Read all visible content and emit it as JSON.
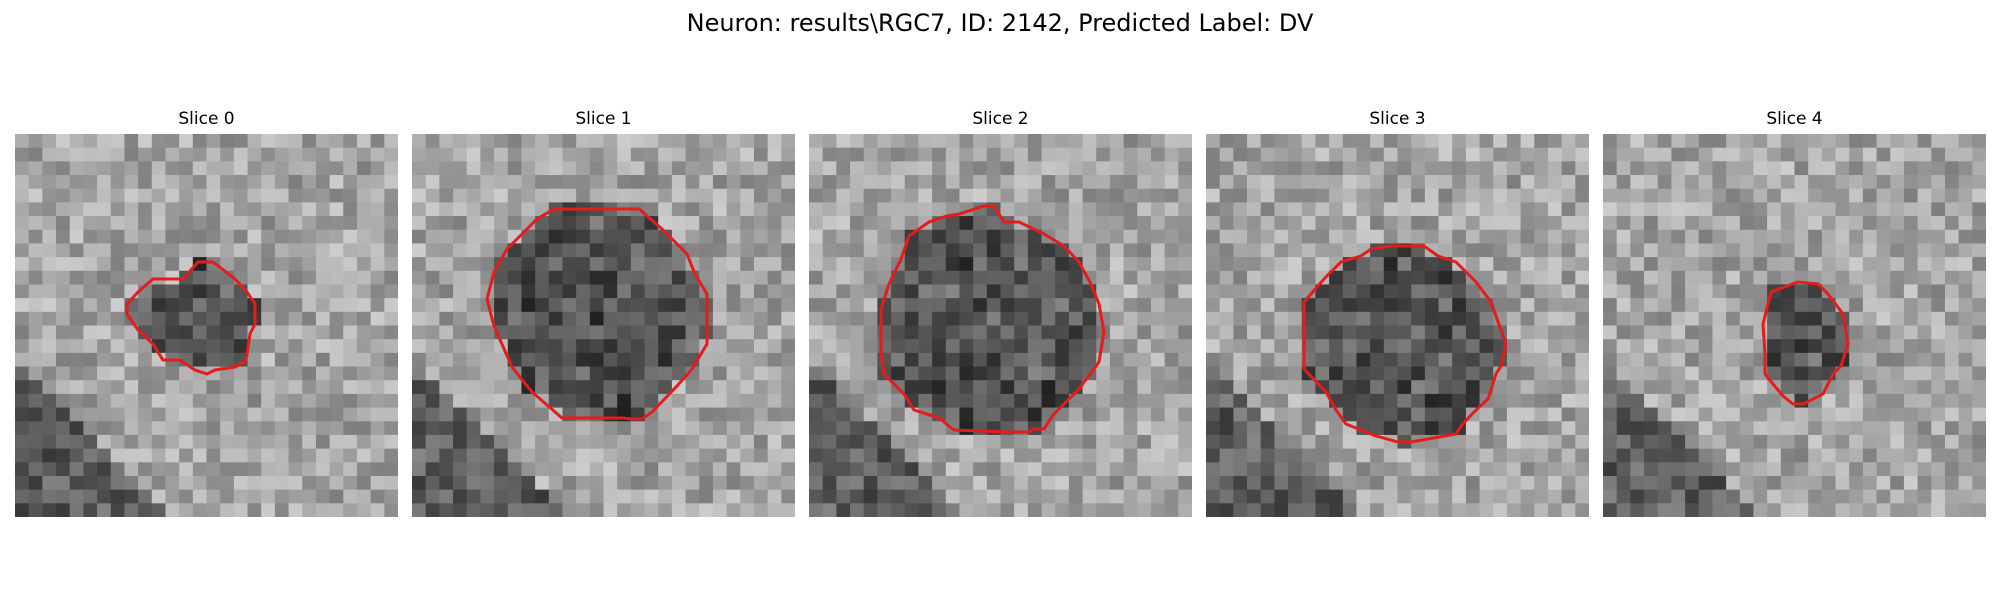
{
  "title": "Neuron: results\\RGC7, ID: 2142, Predicted Label: DV",
  "slices": [
    {
      "label": "Slice 0",
      "contour_color": "#e41c1c"
    },
    {
      "label": "Slice 1",
      "contour_color": "#e41c1c"
    },
    {
      "label": "Slice 2",
      "contour_color": "#e41c1c"
    },
    {
      "label": "Slice 3",
      "contour_color": "#e41c1c"
    },
    {
      "label": "Slice 4",
      "contour_color": "#e41c1c"
    }
  ]
}
